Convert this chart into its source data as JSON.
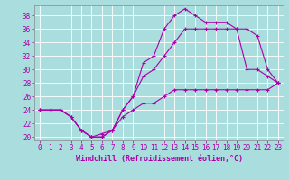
{
  "xlabel": "Windchill (Refroidissement éolien,°C)",
  "bg_color": "#aadddd",
  "grid_color": "#ffffff",
  "line_color": "#aa00aa",
  "xlim": [
    -0.5,
    23.5
  ],
  "ylim": [
    19.5,
    39.5
  ],
  "xticks": [
    0,
    1,
    2,
    3,
    4,
    5,
    6,
    7,
    8,
    9,
    10,
    11,
    12,
    13,
    14,
    15,
    16,
    17,
    18,
    19,
    20,
    21,
    22,
    23
  ],
  "yticks": [
    20,
    22,
    24,
    26,
    28,
    30,
    32,
    34,
    36,
    38
  ],
  "line1_x": [
    0,
    1,
    2,
    3,
    4,
    5,
    6,
    7,
    8,
    9,
    10,
    11,
    12,
    13,
    14,
    15,
    16,
    17,
    18,
    19,
    20,
    21,
    22,
    23
  ],
  "line1_y": [
    24,
    24,
    24,
    23,
    21,
    20,
    20,
    21,
    24,
    26,
    31,
    32,
    36,
    38,
    39,
    38,
    37,
    37,
    37,
    36,
    30,
    30,
    29,
    28
  ],
  "line2_x": [
    0,
    1,
    2,
    3,
    4,
    5,
    6,
    7,
    8,
    9,
    10,
    11,
    12,
    13,
    14,
    15,
    16,
    17,
    18,
    19,
    20,
    21,
    22,
    23
  ],
  "line2_y": [
    24,
    24,
    24,
    23,
    21,
    20,
    20,
    21,
    24,
    26,
    29,
    30,
    32,
    34,
    36,
    36,
    36,
    36,
    36,
    36,
    36,
    35,
    30,
    28
  ],
  "line3_x": [
    0,
    1,
    2,
    3,
    4,
    5,
    6,
    7,
    8,
    9,
    10,
    11,
    12,
    13,
    14,
    15,
    16,
    17,
    18,
    19,
    20,
    21,
    22,
    23
  ],
  "line3_y": [
    24,
    24,
    24,
    23,
    21,
    20,
    20.5,
    21,
    23,
    24,
    25,
    25,
    26,
    27,
    27,
    27,
    27,
    27,
    27,
    27,
    27,
    27,
    27,
    28
  ],
  "marker": "+",
  "markersize": 3,
  "linewidth": 0.8,
  "xlabel_fontsize": 6,
  "tick_fontsize": 5.5
}
